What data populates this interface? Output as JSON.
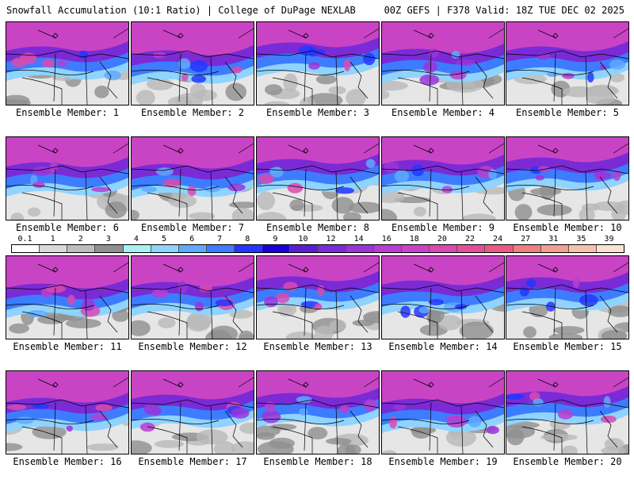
{
  "header": {
    "title_left": "Snowfall Accumulation (10:1 Ratio) | College of DuPage NEXLAB",
    "title_right": "00Z GEFS | F378 Valid: 18Z TUE DEC 02 2025"
  },
  "members": [
    {
      "label": "Ensemble Member: 1",
      "intensity": 0.6
    },
    {
      "label": "Ensemble Member: 2",
      "intensity": 0.35
    },
    {
      "label": "Ensemble Member: 3",
      "intensity": 0.85
    },
    {
      "label": "Ensemble Member: 4",
      "intensity": 0.45
    },
    {
      "label": "Ensemble Member: 5",
      "intensity": 0.6
    },
    {
      "label": "Ensemble Member: 6",
      "intensity": 0.55
    },
    {
      "label": "Ensemble Member: 7",
      "intensity": 0.45
    },
    {
      "label": "Ensemble Member: 8",
      "intensity": 0.75
    },
    {
      "label": "Ensemble Member: 9",
      "intensity": 0.7
    },
    {
      "label": "Ensemble Member: 10",
      "intensity": 0.85
    },
    {
      "label": "Ensemble Member: 11",
      "intensity": 0.4
    },
    {
      "label": "Ensemble Member: 12",
      "intensity": 0.5
    },
    {
      "label": "Ensemble Member: 13",
      "intensity": 0.85
    },
    {
      "label": "Ensemble Member: 14",
      "intensity": 0.6
    },
    {
      "label": "Ensemble Member: 15",
      "intensity": 0.8
    },
    {
      "label": "Ensemble Member: 16",
      "intensity": 0.45
    },
    {
      "label": "Ensemble Member: 17",
      "intensity": 0.65
    },
    {
      "label": "Ensemble Member: 18",
      "intensity": 0.75
    },
    {
      "label": "Ensemble Member: 19",
      "intensity": 0.4
    },
    {
      "label": "Ensemble Member: 20",
      "intensity": 0.85
    }
  ],
  "colorbar": {
    "labels": [
      "0.1",
      "1",
      "2",
      "3",
      "4",
      "5",
      "6",
      "7",
      "8",
      "9",
      "10",
      "12",
      "14",
      "16",
      "18",
      "20",
      "22",
      "24",
      "27",
      "31",
      "35",
      "39"
    ],
    "colors": [
      "#ffffff",
      "#d9d9d9",
      "#bdbdbd",
      "#8f8f8f",
      "#a6f2f2",
      "#8fd3ff",
      "#5fa9ff",
      "#3d7cff",
      "#2436ff",
      "#1a00d9",
      "#5a1fcf",
      "#7a2bd6",
      "#9a35d8",
      "#b53fd1",
      "#c944c4",
      "#d94ab0",
      "#e3509a",
      "#ea5a86",
      "#ee7f7f",
      "#f0a090",
      "#f5c2ae",
      "#fbe2d2"
    ]
  }
}
